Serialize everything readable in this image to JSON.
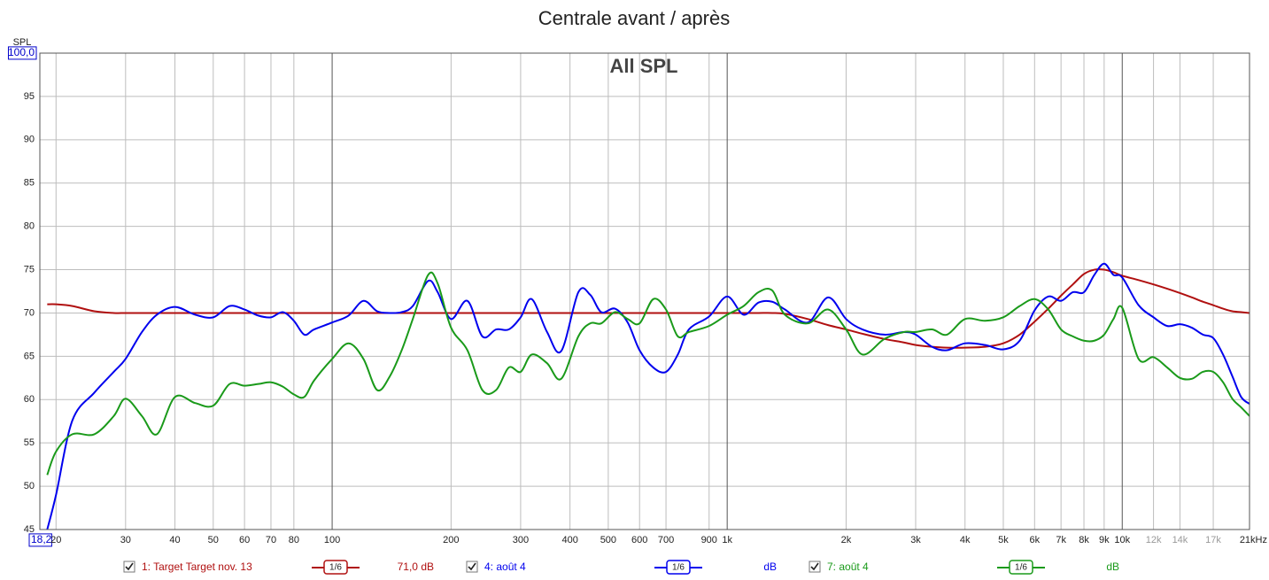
{
  "chart_data": {
    "type": "line",
    "title": "Centrale avant / après",
    "subtitle": "All SPL",
    "y_label": "SPL",
    "x_scale": "log",
    "grid": true,
    "xlim": [
      18.2,
      21000
    ],
    "ylim": [
      45,
      100
    ],
    "xticks": [
      {
        "value": 18.2,
        "label": "18,2"
      },
      20,
      30,
      40,
      50,
      60,
      70,
      80,
      100,
      200,
      300,
      400,
      500,
      600,
      700,
      900,
      {
        "value": 1000,
        "label": "1k"
      },
      {
        "value": 2000,
        "label": "2k"
      },
      {
        "value": 3000,
        "label": "3k"
      },
      {
        "value": 4000,
        "label": "4k"
      },
      {
        "value": 5000,
        "label": "5k"
      },
      {
        "value": 6000,
        "label": "6k"
      },
      {
        "value": 7000,
        "label": "7k"
      },
      {
        "value": 8000,
        "label": "8k"
      },
      {
        "value": 9000,
        "label": "9k"
      },
      {
        "value": 10000,
        "label": "10k"
      },
      {
        "value": 12000,
        "label": "12k",
        "color": "#999999"
      },
      {
        "value": 14000,
        "label": "14k",
        "color": "#999999"
      },
      {
        "value": 17000,
        "label": "17k",
        "color": "#999999"
      },
      {
        "value": 21000,
        "label": "21kHz"
      }
    ],
    "yticks": [
      45,
      50,
      55,
      60,
      65,
      70,
      75,
      80,
      85,
      90,
      95,
      {
        "value": 100,
        "label": "100,0"
      }
    ],
    "x": [
      19,
      20,
      22,
      25,
      28,
      30,
      33,
      36,
      40,
      45,
      50,
      55,
      60,
      65,
      70,
      75,
      80,
      85,
      90,
      100,
      110,
      120,
      130,
      140,
      150,
      160,
      175,
      185,
      200,
      220,
      240,
      260,
      280,
      300,
      320,
      350,
      380,
      420,
      450,
      480,
      520,
      560,
      600,
      650,
      700,
      750,
      800,
      900,
      1000,
      1100,
      1200,
      1300,
      1400,
      1600,
      1800,
      2000,
      2200,
      2500,
      2800,
      3000,
      3300,
      3600,
      4000,
      4500,
      5000,
      5500,
      6000,
      6500,
      7000,
      7500,
      8000,
      8500,
      9000,
      9500,
      10000,
      11000,
      12000,
      13000,
      14000,
      15000,
      16000,
      17000,
      18000,
      19000,
      20000,
      21000
    ],
    "series": [
      {
        "name": "1: Target Target nov. 13",
        "color": "#b01010",
        "smoothing": "1/6",
        "level_label": "71,0 dB",
        "values": [
          71,
          71,
          70.8,
          70.2,
          70,
          70,
          70,
          70,
          70,
          70,
          70,
          70,
          70,
          70,
          70,
          70,
          70,
          70,
          70,
          70,
          70,
          70,
          70,
          70,
          70,
          70,
          70,
          70,
          70,
          70,
          70,
          70,
          70,
          70,
          70,
          70,
          70,
          70,
          70,
          70,
          70,
          70,
          70,
          70,
          70,
          70,
          70,
          70,
          70,
          70,
          70,
          70,
          69.9,
          69.3,
          68.6,
          68.1,
          67.6,
          67,
          66.6,
          66.3,
          66.1,
          66,
          66,
          66.1,
          66.5,
          67.5,
          69,
          70.5,
          72,
          73.3,
          74.5,
          75,
          75,
          74.7,
          74.3,
          73.8,
          73.3,
          72.8,
          72.3,
          71.8,
          71.3,
          70.9,
          70.5,
          70.2,
          70.1,
          70
        ]
      },
      {
        "name": "4: août 4",
        "color": "#0000ee",
        "smoothing": "1/6",
        "level_label": "dB",
        "values": [
          45,
          49,
          57.6,
          60.8,
          63.2,
          64.7,
          67.8,
          69.8,
          70.7,
          69.8,
          69.5,
          70.8,
          70.4,
          69.7,
          69.5,
          70.1,
          69.1,
          67.5,
          68.1,
          68.9,
          69.7,
          71.4,
          70.2,
          70,
          70.1,
          70.8,
          73.7,
          72.4,
          69.3,
          71.4,
          67.3,
          68.1,
          68.1,
          69.5,
          71.6,
          67.8,
          65.6,
          72.4,
          72.1,
          70.1,
          70.5,
          68.9,
          65.7,
          63.7,
          63.2,
          65.2,
          68.1,
          69.6,
          71.9,
          69.8,
          71.2,
          71.3,
          70.4,
          68.9,
          71.8,
          69.3,
          68.1,
          67.5,
          67.8,
          67.5,
          66.1,
          65.7,
          66.5,
          66.3,
          65.8,
          66.8,
          70.3,
          71.9,
          71.4,
          72.4,
          72.4,
          74.4,
          75.7,
          74.4,
          74.1,
          70.9,
          69.5,
          68.5,
          68.7,
          68.3,
          67.5,
          67.1,
          65.2,
          62.7,
          60.3,
          59.5
        ]
      },
      {
        "name": "7: août 4",
        "color": "#1a9a1a",
        "smoothing": "1/6",
        "level_label": "dB",
        "values": [
          51.3,
          54,
          56,
          56,
          58.1,
          60.1,
          58.1,
          56,
          60.3,
          59.6,
          59.3,
          61.8,
          61.6,
          61.8,
          62,
          61.5,
          60.6,
          60.3,
          62.2,
          64.7,
          66.5,
          64.7,
          61.1,
          62.7,
          65.7,
          69.3,
          74.4,
          73.4,
          68.3,
          65.7,
          61.1,
          61.1,
          63.7,
          63.2,
          65.2,
          64.2,
          62.4,
          67.3,
          68.8,
          68.8,
          70.1,
          69.3,
          68.8,
          71.6,
          70.4,
          67.3,
          67.8,
          68.5,
          69.8,
          70.8,
          72.4,
          72.6,
          69.8,
          68.8,
          70.4,
          68.1,
          65.2,
          67,
          67.8,
          67.8,
          68.1,
          67.5,
          69.3,
          69.1,
          69.5,
          70.8,
          71.6,
          70.4,
          68.1,
          67.3,
          66.8,
          66.8,
          67.5,
          69.3,
          70.6,
          64.7,
          64.9,
          63.7,
          62.5,
          62.4,
          63.2,
          63.2,
          62,
          60.1,
          59.1,
          58.1
        ]
      }
    ]
  }
}
